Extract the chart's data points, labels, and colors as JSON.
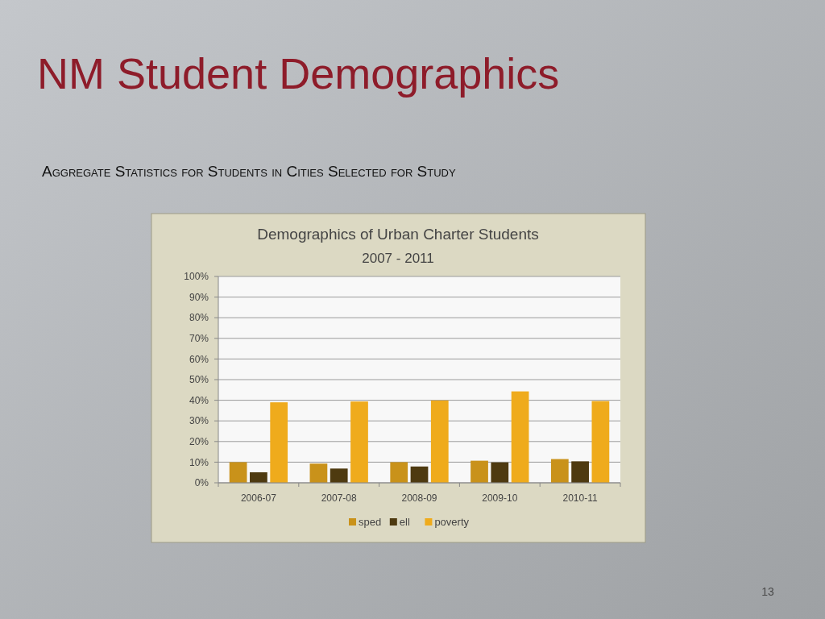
{
  "chart_data": {
    "type": "bar",
    "title": "NM Student Demographics",
    "subtitle": "Aggregate Statistics for Students in Cities Selected for Study",
    "annotations": [
      "Demographics of Urban Charter Students",
      "2007 - 2011",
      "13"
    ],
    "categories": [
      "2006-07",
      "2007-08",
      "2008-09",
      "2009-10",
      "2010-11"
    ],
    "series": [
      {
        "name": "sped",
        "color": "#c9921a",
        "values": [
          10,
          9.3,
          10,
          10.7,
          11.5
        ]
      },
      {
        "name": "ell",
        "color": "#4e3a10",
        "values": [
          5.1,
          6.9,
          7.9,
          9.9,
          10.4
        ]
      },
      {
        "name": "poverty",
        "color": "#efab1c",
        "values": [
          39,
          39.4,
          39.9,
          44.3,
          39.6
        ]
      }
    ],
    "ylim": [
      0,
      100
    ],
    "yticks": [
      {
        "value": 0,
        "label": "0%"
      },
      {
        "value": 10,
        "label": "10%"
      },
      {
        "value": 20,
        "label": "20%"
      },
      {
        "value": 30,
        "label": "30%"
      },
      {
        "value": 40,
        "label": "40%"
      },
      {
        "value": 50,
        "label": "50%"
      },
      {
        "value": 60,
        "label": "60%"
      },
      {
        "value": 70,
        "label": "70%"
      },
      {
        "value": 80,
        "label": "80%"
      },
      {
        "value": 90,
        "label": "90%"
      },
      {
        "value": 100,
        "label": "100%"
      }
    ],
    "grid": "y",
    "legend": "bottom"
  }
}
